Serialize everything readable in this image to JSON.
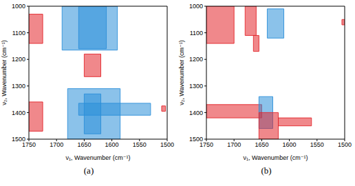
{
  "chart_data": [
    {
      "type": "contour",
      "title": "(a)",
      "x_label": "ν₁, Wavenumber (cm⁻¹)",
      "y_label": "ν₂, Wavenumber (cm⁻¹)",
      "xlim": [
        1750,
        1500
      ],
      "xticks": [
        1750,
        1700,
        1650,
        1600,
        1550,
        1500
      ],
      "ylim": [
        1500,
        1000
      ],
      "yticks": [
        1000,
        1100,
        1200,
        1300,
        1400,
        1500
      ],
      "regions": [
        {
          "x": [
            1750,
            1725
          ],
          "y": [
            1030,
            1140
          ],
          "color": "#e3262b"
        },
        {
          "x": [
            1690,
            1590
          ],
          "y": [
            1000,
            1165
          ],
          "color": "#2b8fd9"
        },
        {
          "x": [
            1660,
            1610
          ],
          "y": [
            1000,
            1160
          ],
          "color": "#2b8fd9"
        },
        {
          "x": [
            1650,
            1620
          ],
          "y": [
            1180,
            1265
          ],
          "color": "#e3262b"
        },
        {
          "x": [
            1680,
            1585
          ],
          "y": [
            1310,
            1500
          ],
          "color": "#2b8fd9"
        },
        {
          "x": [
            1660,
            1530
          ],
          "y": [
            1365,
            1410
          ],
          "color": "#2b8fd9"
        },
        {
          "x": [
            1650,
            1620
          ],
          "y": [
            1330,
            1480
          ],
          "color": "#2b8fd9"
        },
        {
          "x": [
            1750,
            1725
          ],
          "y": [
            1360,
            1470
          ],
          "color": "#e3262b"
        },
        {
          "x": [
            1510,
            1503
          ],
          "y": [
            1375,
            1395
          ],
          "color": "#e3262b"
        }
      ]
    },
    {
      "type": "contour",
      "title": "(b)",
      "x_label": "ν₁, Wavenumber (cm⁻¹)",
      "y_label": "ν₂, Wavenumber (cm⁻¹)",
      "xlim": [
        1750,
        1500
      ],
      "xticks": [
        1750,
        1700,
        1650,
        1600,
        1550,
        1500
      ],
      "ylim": [
        1500,
        1000
      ],
      "yticks": [
        1000,
        1100,
        1200,
        1300,
        1400,
        1500
      ],
      "regions": [
        {
          "x": [
            1750,
            1700
          ],
          "y": [
            1000,
            1140
          ],
          "color": "#e3262b"
        },
        {
          "x": [
            1680,
            1660
          ],
          "y": [
            1000,
            1110
          ],
          "color": "#e3262b"
        },
        {
          "x": [
            1665,
            1655
          ],
          "y": [
            1110,
            1170
          ],
          "color": "#e3262b"
        },
        {
          "x": [
            1640,
            1610
          ],
          "y": [
            1010,
            1120
          ],
          "color": "#2b8fd9"
        },
        {
          "x": [
            1750,
            1650
          ],
          "y": [
            1370,
            1420
          ],
          "color": "#e3262b"
        },
        {
          "x": [
            1655,
            1630
          ],
          "y": [
            1340,
            1460
          ],
          "color": "#2b8fd9"
        },
        {
          "x": [
            1655,
            1620
          ],
          "y": [
            1400,
            1500
          ],
          "color": "#e3262b"
        },
        {
          "x": [
            1620,
            1560
          ],
          "y": [
            1420,
            1450
          ],
          "color": "#e3262b"
        },
        {
          "x": [
            1505,
            1500
          ],
          "y": [
            1050,
            1070
          ],
          "color": "#e3262b"
        }
      ]
    }
  ]
}
